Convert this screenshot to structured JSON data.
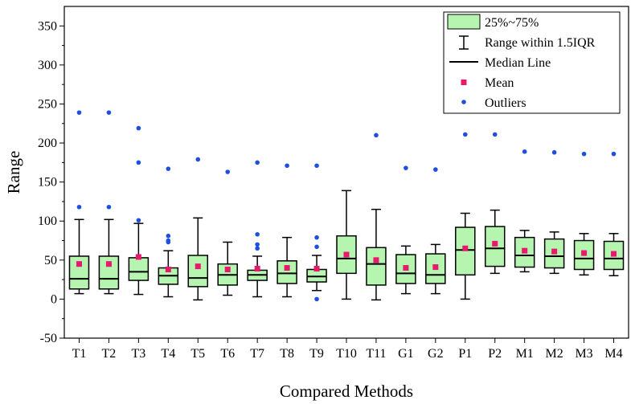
{
  "chart_data": {
    "type": "box",
    "xlabel": "Compared Methods",
    "ylabel": "Range",
    "ylim": [
      -50,
      375
    ],
    "yticks": [
      -50,
      0,
      50,
      100,
      150,
      200,
      250,
      300,
      350
    ],
    "colors": {
      "box_fill": "#b5f5b0",
      "mean": "#e8186d",
      "outlier": "#1f4fe0",
      "line": "#000000"
    },
    "legend": {
      "box": "25%~75%",
      "whisker": "Range within 1.5IQR",
      "median": "Median Line",
      "mean": "Mean",
      "outliers": "Outliers"
    },
    "methods": [
      {
        "label": "T1",
        "whisker_low": 7,
        "q1": 13,
        "median": 26,
        "q3": 55,
        "whisker_high": 102,
        "mean": 45,
        "outliers": [
          118,
          239
        ]
      },
      {
        "label": "T2",
        "whisker_low": 7,
        "q1": 13,
        "median": 26,
        "q3": 55,
        "whisker_high": 102,
        "mean": 45,
        "outliers": [
          118,
          239
        ]
      },
      {
        "label": "T3",
        "whisker_low": 6,
        "q1": 24,
        "median": 35,
        "q3": 53,
        "whisker_high": 97,
        "mean": 54,
        "outliers": [
          101,
          175,
          219
        ]
      },
      {
        "label": "T4",
        "whisker_low": 3,
        "q1": 19,
        "median": 30,
        "q3": 40,
        "whisker_high": 62,
        "mean": 38,
        "outliers": [
          73,
          75,
          81,
          167
        ]
      },
      {
        "label": "T5",
        "whisker_low": -1,
        "q1": 16,
        "median": 27,
        "q3": 56,
        "whisker_high": 104,
        "mean": 42,
        "outliers": [
          179
        ]
      },
      {
        "label": "T6",
        "whisker_low": 5,
        "q1": 18,
        "median": 31,
        "q3": 45,
        "whisker_high": 73,
        "mean": 38,
        "outliers": [
          163
        ]
      },
      {
        "label": "T7",
        "whisker_low": 3,
        "q1": 24,
        "median": 31,
        "q3": 37,
        "whisker_high": 55,
        "mean": 39,
        "outliers": [
          65,
          70,
          83,
          175
        ]
      },
      {
        "label": "T8",
        "whisker_low": 3,
        "q1": 20,
        "median": 33,
        "q3": 49,
        "whisker_high": 79,
        "mean": 40,
        "outliers": [
          171
        ]
      },
      {
        "label": "T9",
        "whisker_low": 11,
        "q1": 22,
        "median": 29,
        "q3": 38,
        "whisker_high": 56,
        "mean": 39,
        "outliers": [
          0,
          67,
          79,
          171
        ]
      },
      {
        "label": "T10",
        "whisker_low": 0,
        "q1": 33,
        "median": 52,
        "q3": 81,
        "whisker_high": 139,
        "mean": 57,
        "outliers": []
      },
      {
        "label": "T11",
        "whisker_low": -1,
        "q1": 18,
        "median": 45,
        "q3": 66,
        "whisker_high": 115,
        "mean": 50,
        "outliers": [
          210
        ]
      },
      {
        "label": "G1",
        "whisker_low": 7,
        "q1": 20,
        "median": 33,
        "q3": 57,
        "whisker_high": 68,
        "mean": 40,
        "outliers": [
          168
        ]
      },
      {
        "label": "G2",
        "whisker_low": 7,
        "q1": 20,
        "median": 31,
        "q3": 58,
        "whisker_high": 70,
        "mean": 41,
        "outliers": [
          166
        ]
      },
      {
        "label": "P1",
        "whisker_low": 0,
        "q1": 31,
        "median": 63,
        "q3": 92,
        "whisker_high": 110,
        "mean": 65,
        "outliers": [
          211
        ]
      },
      {
        "label": "P2",
        "whisker_low": 33,
        "q1": 42,
        "median": 65,
        "q3": 93,
        "whisker_high": 114,
        "mean": 71,
        "outliers": [
          211
        ]
      },
      {
        "label": "M1",
        "whisker_low": 35,
        "q1": 41,
        "median": 56,
        "q3": 79,
        "whisker_high": 88,
        "mean": 62,
        "outliers": [
          189
        ]
      },
      {
        "label": "M2",
        "whisker_low": 33,
        "q1": 40,
        "median": 55,
        "q3": 77,
        "whisker_high": 86,
        "mean": 61,
        "outliers": [
          188
        ]
      },
      {
        "label": "M3",
        "whisker_low": 31,
        "q1": 38,
        "median": 52,
        "q3": 75,
        "whisker_high": 84,
        "mean": 59,
        "outliers": [
          186
        ]
      },
      {
        "label": "M4",
        "whisker_low": 30,
        "q1": 38,
        "median": 52,
        "q3": 74,
        "whisker_high": 84,
        "mean": 58,
        "outliers": [
          186
        ]
      }
    ]
  }
}
